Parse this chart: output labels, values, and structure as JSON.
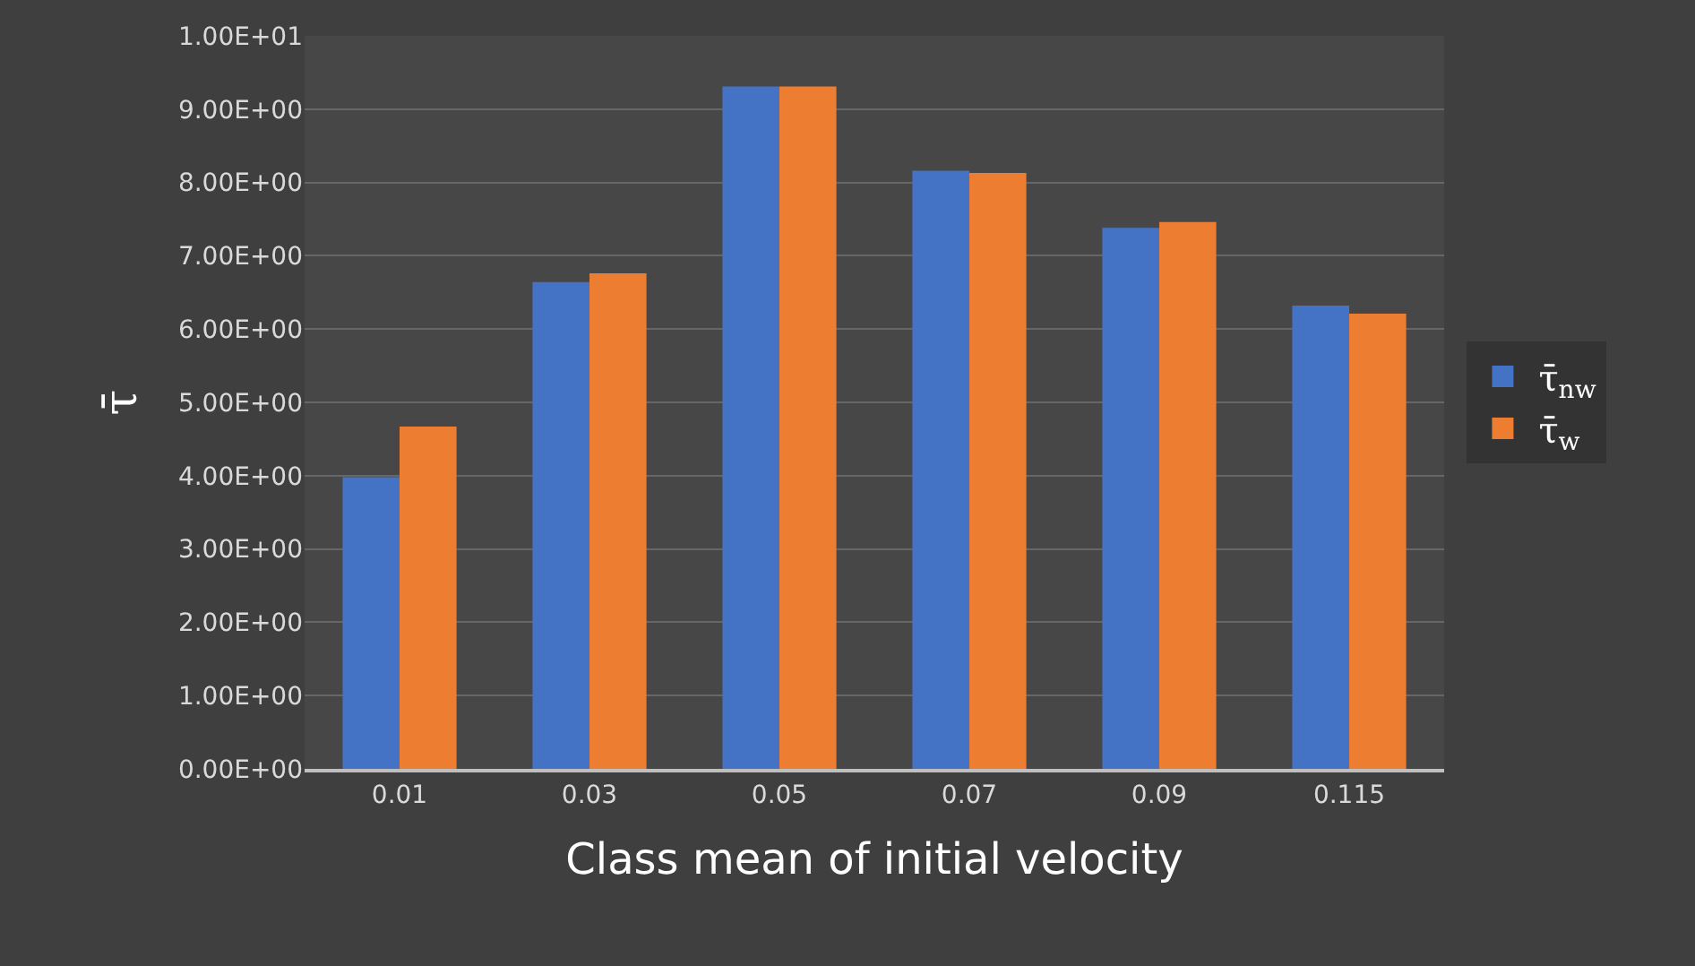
{
  "chart_data": {
    "type": "bar",
    "xlabel": "Class mean of initial velocity",
    "ylabel": "τ̄",
    "categories": [
      "0.01",
      "0.03",
      "0.05",
      "0.07",
      "0.09",
      "0.115"
    ],
    "series": [
      {
        "name": "τ̄$_{nw}$",
        "color": "#4472c4",
        "values": [
          3.98,
          6.64,
          9.31,
          8.16,
          7.38,
          6.32
        ]
      },
      {
        "name": "τ̄$_{w}$",
        "color": "#ed7d31",
        "values": [
          4.67,
          6.76,
          9.31,
          8.13,
          7.46,
          6.21
        ]
      }
    ],
    "ylim": [
      0,
      10
    ],
    "yticks": [
      {
        "value": 0,
        "label": "0.00E+00"
      },
      {
        "value": 1,
        "label": "1.00E+00"
      },
      {
        "value": 2,
        "label": "2.00E+00"
      },
      {
        "value": 3,
        "label": "3.00E+00"
      },
      {
        "value": 4,
        "label": "4.00E+00"
      },
      {
        "value": 5,
        "label": "5.00E+00"
      },
      {
        "value": 6,
        "label": "6.00E+00"
      },
      {
        "value": 7,
        "label": "7.00E+00"
      },
      {
        "value": 8,
        "label": "8.00E+00"
      },
      {
        "value": 9,
        "label": "9.00E+00"
      },
      {
        "value": 10,
        "label": "1.00E+01"
      }
    ],
    "grid": "y",
    "legend": "right"
  }
}
